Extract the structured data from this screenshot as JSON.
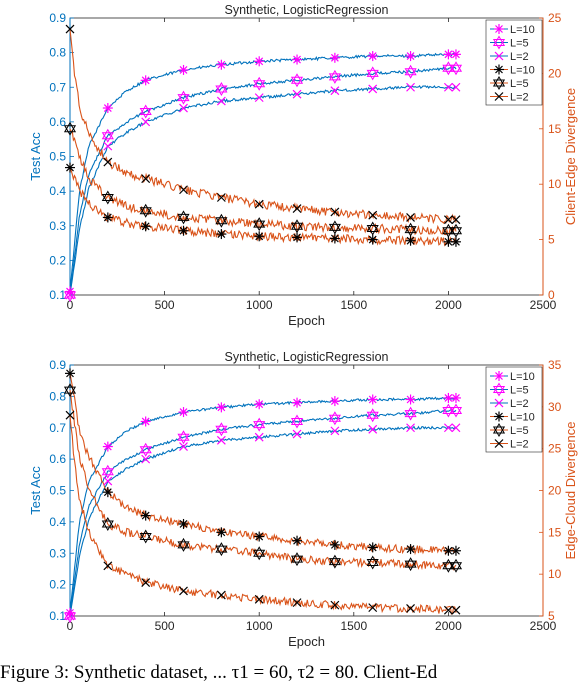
{
  "caption": "Figure 3: Synthetic dataset, ... τ1 = 60, τ2 = 80. Client-Ed",
  "colors": {
    "blue": "#0072BD",
    "orange": "#D95319",
    "magenta": "#FF00FF",
    "black": "#000000"
  },
  "chart_data": [
    {
      "type": "line",
      "title": "Synthetic, LogisticRegression",
      "xlabel": "Epoch",
      "ylabel": "Test Acc",
      "y2label": "Client-Edge Divergence",
      "xlim": [
        0,
        2500
      ],
      "ylim": [
        0.1,
        0.9
      ],
      "y2lim": [
        0,
        25
      ],
      "xticks": [
        0,
        500,
        1000,
        1500,
        2000,
        2500
      ],
      "yticks": [
        0.1,
        0.2,
        0.3,
        0.4,
        0.5,
        0.6,
        0.7,
        0.8,
        0.9
      ],
      "y2ticks": [
        0,
        5,
        10,
        15,
        20,
        25
      ],
      "legend_position": "top-right",
      "series": [
        {
          "name": "L=10",
          "axis": "left",
          "color": "magenta",
          "marker": "asterisk",
          "x": [
            0,
            50,
            100,
            200,
            300,
            400,
            600,
            800,
            1000,
            1200,
            1400,
            1600,
            1800,
            2000,
            2040
          ],
          "y": [
            0.11,
            0.4,
            0.53,
            0.64,
            0.69,
            0.72,
            0.75,
            0.765,
            0.775,
            0.78,
            0.785,
            0.79,
            0.79,
            0.795,
            0.795
          ]
        },
        {
          "name": "L=5",
          "axis": "left",
          "color": "magenta",
          "marker": "star",
          "x": [
            0,
            50,
            100,
            200,
            300,
            400,
            600,
            800,
            1000,
            1200,
            1400,
            1600,
            1800,
            2000,
            2040
          ],
          "y": [
            0.1,
            0.33,
            0.45,
            0.56,
            0.6,
            0.63,
            0.67,
            0.695,
            0.71,
            0.72,
            0.73,
            0.74,
            0.745,
            0.755,
            0.755
          ]
        },
        {
          "name": "L=2",
          "axis": "left",
          "color": "magenta",
          "marker": "x",
          "x": [
            0,
            50,
            100,
            200,
            300,
            400,
            600,
            800,
            1000,
            1200,
            1400,
            1600,
            1800,
            2000,
            2040
          ],
          "y": [
            0.1,
            0.29,
            0.41,
            0.53,
            0.57,
            0.6,
            0.64,
            0.66,
            0.67,
            0.68,
            0.69,
            0.695,
            0.7,
            0.7,
            0.7
          ]
        },
        {
          "name": "L=10",
          "axis": "right",
          "color": "black",
          "marker": "asterisk",
          "x": [
            0,
            25,
            50,
            100,
            200,
            300,
            400,
            600,
            800,
            1000,
            1200,
            1400,
            1600,
            1800,
            2000,
            2040
          ],
          "y": [
            11.5,
            10.5,
            9.5,
            8.2,
            7.0,
            6.5,
            6.2,
            5.8,
            5.5,
            5.3,
            5.2,
            5.1,
            5.0,
            4.9,
            4.8,
            4.8
          ]
        },
        {
          "name": "L=5",
          "axis": "right",
          "color": "black",
          "marker": "star",
          "x": [
            0,
            25,
            50,
            100,
            200,
            300,
            400,
            600,
            800,
            1000,
            1200,
            1400,
            1600,
            1800,
            2000,
            2040
          ],
          "y": [
            15.0,
            14.0,
            12.5,
            10.5,
            8.8,
            8.0,
            7.6,
            7.0,
            6.7,
            6.4,
            6.2,
            6.1,
            6.0,
            5.9,
            5.8,
            5.8
          ]
        },
        {
          "name": "L=2",
          "axis": "right",
          "color": "black",
          "marker": "x",
          "x": [
            0,
            25,
            50,
            100,
            200,
            300,
            400,
            600,
            800,
            1000,
            1200,
            1400,
            1600,
            1800,
            2000,
            2040
          ],
          "y": [
            24.0,
            20.0,
            17.0,
            14.5,
            12.0,
            11.0,
            10.5,
            9.5,
            8.8,
            8.2,
            7.8,
            7.5,
            7.2,
            7.0,
            6.8,
            6.8
          ]
        }
      ]
    },
    {
      "type": "line",
      "title": "Synthetic, LogisticRegression",
      "xlabel": "Epoch",
      "ylabel": "Test Acc",
      "y2label": "Edge-Cloud Divergence",
      "xlim": [
        0,
        2500
      ],
      "ylim": [
        0.1,
        0.9
      ],
      "y2lim": [
        5,
        35
      ],
      "xticks": [
        0,
        500,
        1000,
        1500,
        2000,
        2500
      ],
      "yticks": [
        0.1,
        0.2,
        0.3,
        0.4,
        0.5,
        0.6,
        0.7,
        0.8,
        0.9
      ],
      "y2ticks": [
        5,
        10,
        15,
        20,
        25,
        30,
        35
      ],
      "legend_position": "top-right",
      "series": [
        {
          "name": "L=10",
          "axis": "left",
          "color": "magenta",
          "marker": "asterisk",
          "x": [
            0,
            50,
            100,
            200,
            300,
            400,
            600,
            800,
            1000,
            1200,
            1400,
            1600,
            1800,
            2000,
            2040
          ],
          "y": [
            0.11,
            0.4,
            0.53,
            0.64,
            0.69,
            0.72,
            0.75,
            0.765,
            0.775,
            0.78,
            0.785,
            0.79,
            0.79,
            0.795,
            0.795
          ]
        },
        {
          "name": "L=5",
          "axis": "left",
          "color": "magenta",
          "marker": "star",
          "x": [
            0,
            50,
            100,
            200,
            300,
            400,
            600,
            800,
            1000,
            1200,
            1400,
            1600,
            1800,
            2000,
            2040
          ],
          "y": [
            0.1,
            0.33,
            0.45,
            0.56,
            0.6,
            0.63,
            0.67,
            0.695,
            0.71,
            0.72,
            0.73,
            0.74,
            0.745,
            0.755,
            0.755
          ]
        },
        {
          "name": "L=2",
          "axis": "left",
          "color": "magenta",
          "marker": "x",
          "x": [
            0,
            50,
            100,
            200,
            300,
            400,
            600,
            800,
            1000,
            1200,
            1400,
            1600,
            1800,
            2000,
            2040
          ],
          "y": [
            0.1,
            0.29,
            0.41,
            0.53,
            0.57,
            0.6,
            0.64,
            0.66,
            0.67,
            0.68,
            0.69,
            0.695,
            0.7,
            0.7,
            0.7
          ]
        },
        {
          "name": "L=10",
          "axis": "right",
          "color": "black",
          "marker": "asterisk",
          "x": [
            0,
            25,
            50,
            100,
            200,
            300,
            400,
            600,
            800,
            1000,
            1200,
            1400,
            1600,
            1800,
            2000,
            2040
          ],
          "y": [
            34.0,
            31.0,
            27.0,
            24.0,
            19.8,
            18.0,
            17.0,
            16.0,
            15.0,
            14.5,
            14.0,
            13.5,
            13.2,
            13.0,
            12.8,
            12.8
          ]
        },
        {
          "name": "L=5",
          "axis": "right",
          "color": "black",
          "marker": "star",
          "x": [
            0,
            25,
            50,
            100,
            200,
            300,
            400,
            600,
            800,
            1000,
            1200,
            1400,
            1600,
            1800,
            2000,
            2040
          ],
          "y": [
            32.0,
            28.0,
            24.0,
            20.0,
            16.0,
            15.0,
            14.5,
            13.5,
            13.0,
            12.5,
            11.8,
            11.5,
            11.4,
            11.2,
            11.0,
            11.0
          ]
        },
        {
          "name": "L=2",
          "axis": "right",
          "color": "black",
          "marker": "x",
          "x": [
            0,
            25,
            50,
            100,
            200,
            300,
            400,
            600,
            800,
            1000,
            1200,
            1400,
            1600,
            1800,
            2000,
            2040
          ],
          "y": [
            29.0,
            23.0,
            19.0,
            15.0,
            11.0,
            10.0,
            9.0,
            8.0,
            7.5,
            7.0,
            6.6,
            6.3,
            6.0,
            5.9,
            5.7,
            5.7
          ]
        }
      ]
    }
  ]
}
